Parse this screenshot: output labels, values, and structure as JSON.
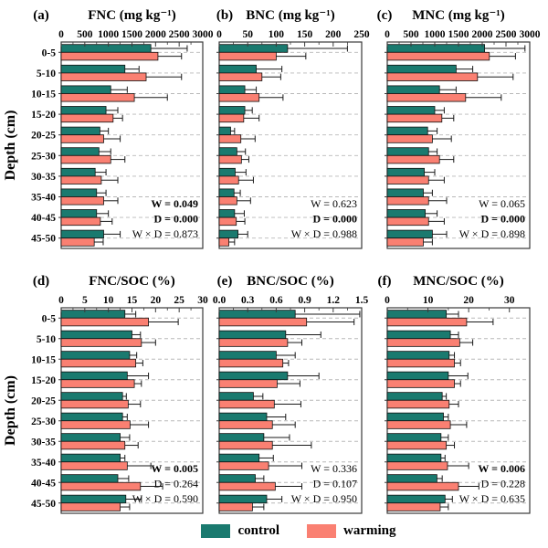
{
  "figure": {
    "y_axis_label": "Depth (cm)",
    "categories": [
      "0-5",
      "5-10",
      "10-15",
      "15-20",
      "20-25",
      "25-30",
      "30-35",
      "35-40",
      "40-45",
      "45-50"
    ],
    "legend": {
      "items": [
        {
          "label": "control",
          "color": "#1a7a6f"
        },
        {
          "label": "warming",
          "color": "#fa8072"
        }
      ]
    },
    "colors": {
      "control": "#1a7a6f",
      "warming": "#fa8072",
      "axis": "#3a3a3a",
      "grid": "#b8b8b8",
      "error_bar": "#1a1a1a"
    }
  },
  "chart_data": [
    {
      "id": "a",
      "tag": "(a)",
      "title": "FNC (mg kg⁻¹)",
      "type": "bar",
      "orientation": "horizontal",
      "xlim": [
        0,
        3000
      ],
      "xtick_labels": [
        "0",
        "500",
        "1000",
        "1500",
        "2000",
        "2500",
        "3000"
      ],
      "categories": [
        "0-5",
        "5-10",
        "10-15",
        "15-20",
        "20-25",
        "25-30",
        "30-35",
        "35-40",
        "40-45",
        "45-50"
      ],
      "series": [
        {
          "name": "control",
          "values": [
            1900,
            1350,
            1050,
            950,
            820,
            800,
            720,
            750,
            750,
            900
          ],
          "errors": [
            770,
            300,
            350,
            250,
            180,
            250,
            230,
            200,
            250,
            350
          ]
        },
        {
          "name": "warming",
          "values": [
            2050,
            1800,
            1550,
            1100,
            900,
            1050,
            850,
            900,
            830,
            700
          ],
          "errors": [
            500,
            750,
            700,
            200,
            350,
            300,
            350,
            300,
            250,
            190
          ]
        }
      ],
      "stats": [
        {
          "text": "W = 0.049",
          "bold": true
        },
        {
          "text": "D = 0.000",
          "bold": true
        },
        {
          "text": "W × D = 0.873",
          "bold": false
        }
      ]
    },
    {
      "id": "b",
      "tag": "(b)",
      "title": "BNC (mg kg⁻¹)",
      "type": "bar",
      "orientation": "horizontal",
      "xlim": [
        0,
        250
      ],
      "xtick_labels": [
        "0",
        "50",
        "100",
        "150",
        "200",
        "250"
      ],
      "categories": [
        "0-5",
        "5-10",
        "10-15",
        "15-20",
        "20-25",
        "25-30",
        "30-35",
        "35-40",
        "40-45",
        "45-50"
      ],
      "series": [
        {
          "name": "control",
          "values": [
            120,
            65,
            45,
            45,
            20,
            31,
            28,
            26,
            27,
            33
          ],
          "errors": [
            105,
            45,
            20,
            13,
            7,
            15,
            19,
            11,
            17,
            17
          ]
        },
        {
          "name": "warming",
          "values": [
            100,
            75,
            70,
            43,
            38,
            39,
            34,
            31,
            30,
            17
          ],
          "errors": [
            52,
            33,
            42,
            27,
            25,
            13,
            26,
            24,
            15,
            10
          ]
        }
      ],
      "stats": [
        {
          "text": "W = 0.623",
          "bold": false
        },
        {
          "text": "D = 0.000",
          "bold": true
        },
        {
          "text": "W × D = 0.988",
          "bold": false
        }
      ]
    },
    {
      "id": "c",
      "tag": "(c)",
      "title": "MNC (mg kg⁻¹)",
      "type": "bar",
      "orientation": "horizontal",
      "xlim": [
        0,
        3000
      ],
      "xtick_labels": [
        "0",
        "500",
        "1000",
        "1500",
        "2000",
        "2500",
        "3000"
      ],
      "categories": [
        "0-5",
        "5-10",
        "10-15",
        "15-20",
        "20-25",
        "25-30",
        "30-35",
        "35-40",
        "40-45",
        "45-50"
      ],
      "series": [
        {
          "name": "control",
          "values": [
            2050,
            1450,
            1100,
            1000,
            850,
            870,
            780,
            760,
            800,
            950
          ],
          "errors": [
            850,
            350,
            350,
            200,
            200,
            180,
            220,
            190,
            250,
            300
          ]
        },
        {
          "name": "warming",
          "values": [
            2150,
            1900,
            1650,
            1150,
            950,
            1100,
            870,
            870,
            870,
            760
          ],
          "errors": [
            550,
            750,
            750,
            250,
            400,
            300,
            330,
            380,
            330,
            190
          ]
        }
      ],
      "stats": [
        {
          "text": "W = 0.065",
          "bold": false
        },
        {
          "text": "D = 0.000",
          "bold": true
        },
        {
          "text": "W × D = 0.898",
          "bold": false
        }
      ]
    },
    {
      "id": "d",
      "tag": "(d)",
      "title": "FNC/SOC (%)",
      "type": "bar",
      "orientation": "horizontal",
      "xlim": [
        0,
        30
      ],
      "xtick_labels": [
        "0",
        "5",
        "10",
        "15",
        "20",
        "25",
        "30"
      ],
      "categories": [
        "0-5",
        "5-10",
        "10-15",
        "15-20",
        "20-25",
        "25-30",
        "30-35",
        "35-40",
        "40-45",
        "45-50"
      ],
      "series": [
        {
          "name": "control",
          "values": [
            13.5,
            15.0,
            14.5,
            14.0,
            13.0,
            13.0,
            12.5,
            12.5,
            12.0,
            13.7
          ],
          "errors": [
            2.3,
            1.8,
            1.5,
            4.5,
            0.8,
            1.0,
            2.0,
            1.0,
            2.3,
            3.3
          ]
        },
        {
          "name": "warming",
          "values": [
            18.5,
            17.0,
            15.8,
            15.5,
            14.2,
            14.6,
            13.5,
            14.0,
            16.8,
            12.5
          ],
          "errors": [
            6.3,
            3.0,
            1.5,
            1.5,
            2.6,
            3.9,
            2.8,
            5.0,
            4.7,
            2.0
          ]
        }
      ],
      "stats": [
        {
          "text": "W = 0.005",
          "bold": true
        },
        {
          "text": "D = 0.264",
          "bold": false
        },
        {
          "text": "W × D = 0.590",
          "bold": false
        }
      ]
    },
    {
      "id": "e",
      "tag": "(e)",
      "title": "BNC/SOC (%)",
      "type": "bar",
      "orientation": "horizontal",
      "xlim": [
        0,
        1.5
      ],
      "xtick_labels": [
        "0.0",
        "0.3",
        "0.6",
        "0.9",
        "1.2",
        "1.5"
      ],
      "categories": [
        "0-5",
        "5-10",
        "10-15",
        "15-20",
        "20-25",
        "25-30",
        "30-35",
        "35-40",
        "40-45",
        "45-50"
      ],
      "series": [
        {
          "name": "control",
          "values": [
            0.8,
            0.7,
            0.6,
            0.72,
            0.36,
            0.5,
            0.47,
            0.42,
            0.38,
            0.5
          ],
          "errors": [
            0.68,
            0.37,
            0.2,
            0.33,
            0.1,
            0.2,
            0.27,
            0.15,
            0.09,
            0.16
          ]
        },
        {
          "name": "warming",
          "values": [
            0.92,
            0.72,
            0.67,
            0.61,
            0.58,
            0.56,
            0.56,
            0.52,
            0.59,
            0.35
          ],
          "errors": [
            0.5,
            0.15,
            0.06,
            0.24,
            0.28,
            0.24,
            0.41,
            0.35,
            0.28,
            0.12
          ]
        }
      ],
      "stats": [
        {
          "text": "W = 0.336",
          "bold": false
        },
        {
          "text": "D = 0.107",
          "bold": false
        },
        {
          "text": "W × D = 0.950",
          "bold": false
        }
      ]
    },
    {
      "id": "f",
      "tag": "(f)",
      "title": "MNC/SOC (%)",
      "type": "bar",
      "orientation": "horizontal",
      "xlim": [
        0,
        35
      ],
      "xtick_labels": [
        "0",
        "10",
        "20",
        "30"
      ],
      "categories": [
        "0-5",
        "5-10",
        "10-15",
        "15-20",
        "20-25",
        "25-30",
        "30-35",
        "35-40",
        "40-45",
        "45-50"
      ],
      "series": [
        {
          "name": "control",
          "values": [
            14.5,
            15.5,
            15.2,
            15.0,
            13.5,
            13.8,
            13.2,
            13.2,
            12.2,
            14.2
          ],
          "errors": [
            3.0,
            2.0,
            1.3,
            4.8,
            1.0,
            1.2,
            1.8,
            1.0,
            1.3,
            1.8
          ]
        },
        {
          "name": "warming",
          "values": [
            19.5,
            17.8,
            16.5,
            16.5,
            15.2,
            15.5,
            14.5,
            14.8,
            17.5,
            13.0
          ],
          "errors": [
            6.5,
            3.2,
            1.5,
            1.5,
            2.3,
            4.0,
            2.0,
            5.2,
            5.0,
            2.0
          ]
        }
      ],
      "stats": [
        {
          "text": "W = 0.006",
          "bold": true
        },
        {
          "text": "D = 0.228",
          "bold": false
        },
        {
          "text": "W × D = 0.635",
          "bold": false
        }
      ]
    }
  ]
}
